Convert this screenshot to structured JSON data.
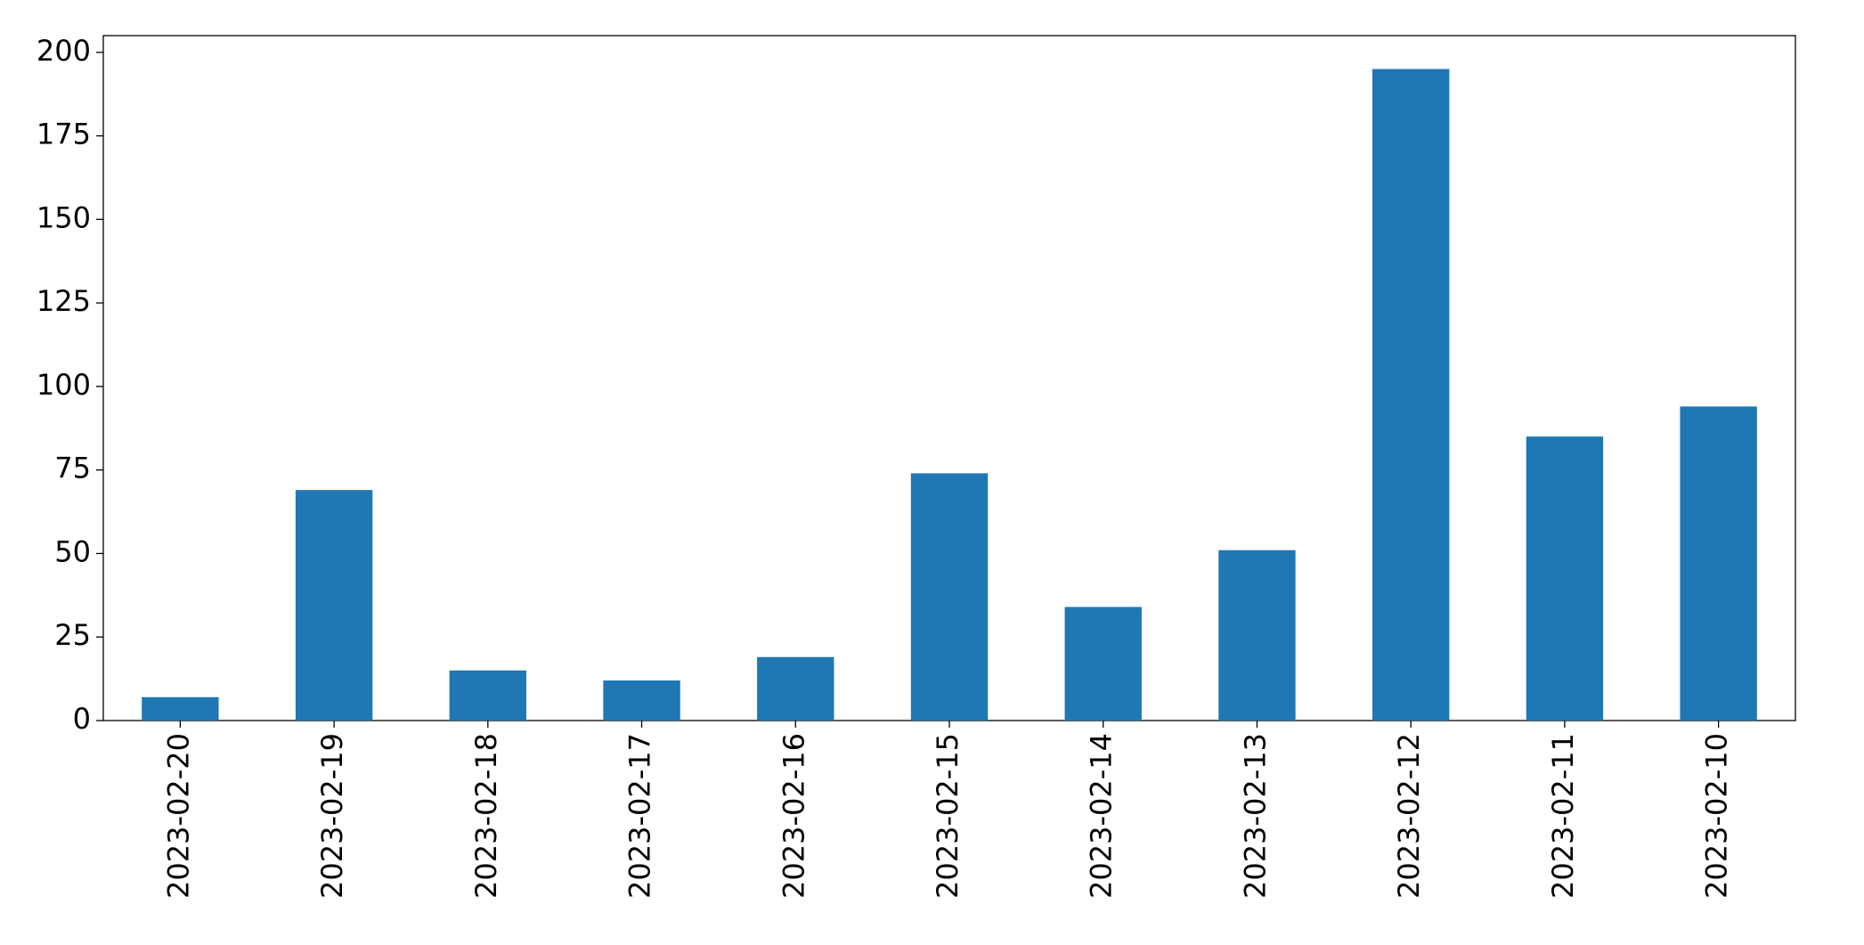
{
  "chart_data": {
    "type": "bar",
    "categories": [
      "2023-02-20",
      "2023-02-19",
      "2023-02-18",
      "2023-02-17",
      "2023-02-16",
      "2023-02-15",
      "2023-02-14",
      "2023-02-13",
      "2023-02-12",
      "2023-02-11",
      "2023-02-10"
    ],
    "values": [
      7,
      69,
      15,
      12,
      19,
      74,
      34,
      51,
      195,
      85,
      94
    ],
    "color": "#1f77b4",
    "ylim": [
      0,
      205
    ],
    "yticks": [
      0,
      25,
      50,
      75,
      100,
      125,
      150,
      175,
      200
    ],
    "grid": false
  }
}
